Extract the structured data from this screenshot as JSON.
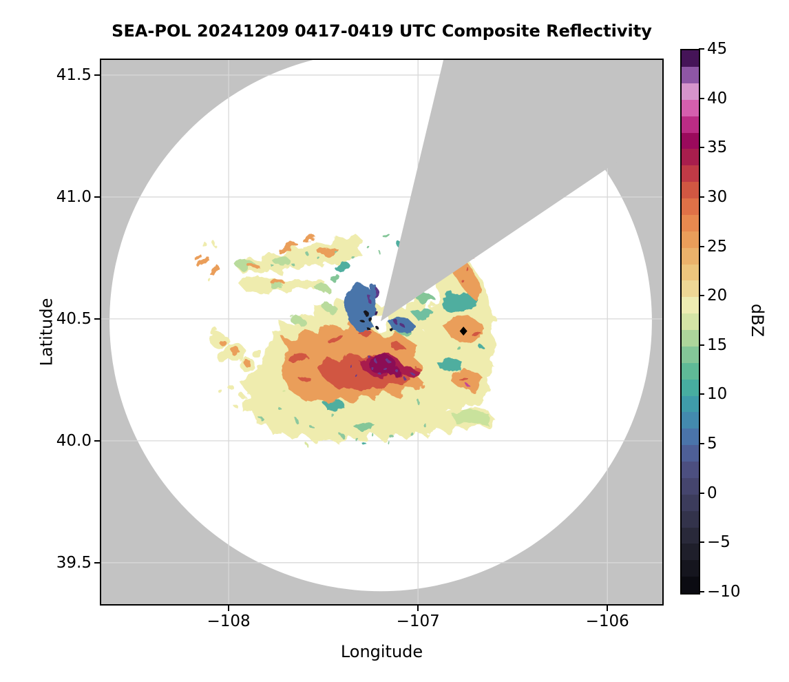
{
  "title": "SEA-POL 20241209 0417-0419 UTC Composite Reflectivity",
  "chart_data": {
    "type": "heatmap",
    "title": "SEA-POL 20241209 0417-0419 UTC Composite Reflectivity",
    "xlabel": "Longitude",
    "ylabel": "Latitude",
    "xlim": [
      -108.673,
      -105.71
    ],
    "ylim": [
      39.33,
      41.562
    ],
    "x_ticks": [
      -108,
      -107,
      -106
    ],
    "x_tick_labels": [
      "−108",
      "−107",
      "−106"
    ],
    "y_ticks": [
      41.5,
      41.0,
      40.5,
      40.0,
      39.5
    ],
    "y_tick_labels": [
      "41.5",
      "41.0",
      "40.5",
      "40.0",
      "39.5"
    ],
    "grid": true,
    "legend_position": "right-colorbar",
    "no_data_color": "#c3c3c3",
    "scan_area_color": "#ffffff",
    "grid_color": "#d8d8d8",
    "radar": {
      "name": "SEA-POL",
      "lon": -107.197,
      "lat": 40.49,
      "range_lon_deg": 1.432,
      "range_lat_deg": 1.107,
      "blocked_sector_azimuth_deg": [
        13.5,
        56.0
      ]
    },
    "marker": {
      "shape": "diamond",
      "color": "#000000",
      "lon": -106.76,
      "lat": 40.45
    },
    "colorbar": {
      "label": "dBZ",
      "vmin": -10,
      "vmax": 45,
      "n_segments": 33,
      "tick_values": [
        45,
        40,
        35,
        30,
        25,
        20,
        15,
        10,
        5,
        0,
        -5,
        -10
      ],
      "tick_labels": [
        "45",
        "40",
        "35",
        "30",
        "25",
        "20",
        "15",
        "10",
        "5",
        "0",
        "−5",
        "−10"
      ],
      "colors_bottom_to_top": [
        "#0b0b12",
        "#15151e",
        "#1f1f2b",
        "#29293a",
        "#33334b",
        "#3c3c5c",
        "#45456e",
        "#4c4f80",
        "#4e5f97",
        "#4a74aa",
        "#438aae",
        "#3f9caa",
        "#47ada0",
        "#5fba97",
        "#84c698",
        "#add59b",
        "#d4e4a6",
        "#eeecb2",
        "#eed795",
        "#edc57d",
        "#ebb26b",
        "#ea9e5a",
        "#e7894f",
        "#df7147",
        "#d15742",
        "#c03a46",
        "#a81e4d",
        "#9a0a5c",
        "#bb2c85",
        "#d55fae",
        "#d694cb",
        "#8e56a5",
        "#451458"
      ]
    },
    "echo_regions": [
      {
        "desc": "main storm mass, 20-32 dBZ orange/red with pale-yellow fringe",
        "lon": -107.35,
        "lat": 40.28,
        "dbz_range": [
          15,
          32
        ]
      },
      {
        "desc": "dark crimson/magenta core with purple speckles",
        "lon": -107.18,
        "lat": 40.31,
        "dbz_range": [
          33,
          43
        ]
      },
      {
        "desc": "blue/purple/black blockage ring just south of radar site",
        "lon": -107.22,
        "lat": 40.52,
        "dbz_range": [
          -8,
          45
        ]
      },
      {
        "desc": "northeast echo lobe, orange core",
        "lon": -106.75,
        "lat": 40.68,
        "dbz_range": [
          15,
          30
        ]
      },
      {
        "desc": "teal patch east of radar",
        "lon": -106.82,
        "lat": 40.56,
        "dbz_range": [
          8,
          12
        ]
      },
      {
        "desc": "northwest wavy band with orange streaks",
        "lon": -107.65,
        "lat": 40.78,
        "dbz_range": [
          10,
          26
        ]
      },
      {
        "desc": "isolated orange streaks far west",
        "lon": -108.13,
        "lat": 40.73,
        "dbz_range": [
          15,
          24
        ]
      },
      {
        "desc": "scattered weak cells southwest of main mass",
        "lon": -107.98,
        "lat": 40.32,
        "dbz_range": [
          12,
          22
        ]
      }
    ]
  }
}
